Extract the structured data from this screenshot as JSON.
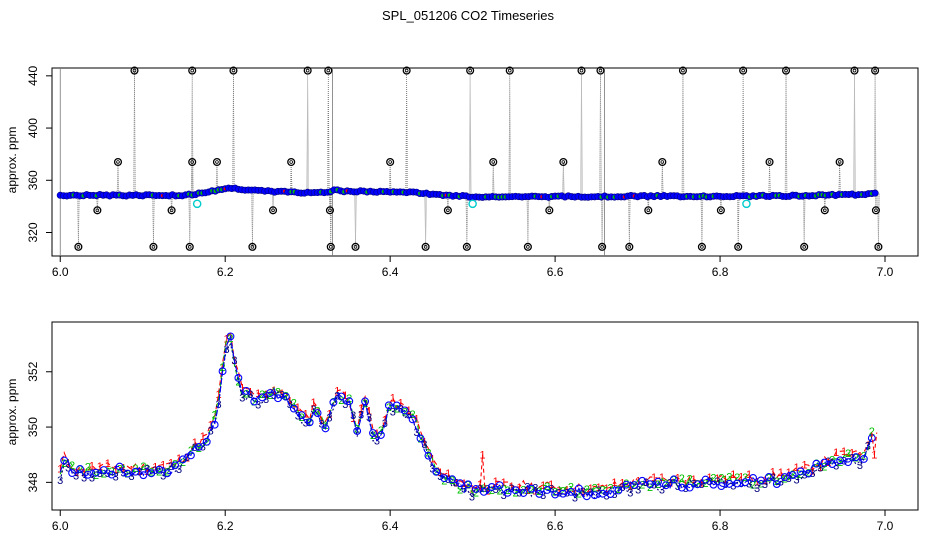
{
  "title": "SPL_051206  CO2 Timeseries",
  "colors": {
    "background": "#ffffff",
    "axis": "#000000",
    "flag_line": "#777777",
    "blue": "#0000ff",
    "green": "#00c000",
    "red": "#ff0000",
    "navy": "#000080",
    "cyan": "#00cccc",
    "black": "#000000",
    "purple": "#a020f0"
  },
  "chart_data": [
    {
      "type": "scatter",
      "name": "top",
      "title": "",
      "xlabel": "",
      "ylabel": "approx. ppm",
      "xlim": [
        5.99,
        7.04
      ],
      "ylim": [
        302,
        446
      ],
      "xticks": [
        6.0,
        6.2,
        6.4,
        6.6,
        6.8,
        7.0
      ],
      "xtick_labels": [
        "6.0",
        "6.2",
        "6.4",
        "6.6",
        "6.8",
        "7.0"
      ],
      "yticks": [
        320,
        360,
        400,
        440
      ],
      "ytick_labels": [
        "320",
        "360",
        "400",
        "440"
      ],
      "baseline_knots": [
        [
          6.0,
          348.5
        ],
        [
          6.15,
          348.5
        ],
        [
          6.17,
          350
        ],
        [
          6.2,
          353.5
        ],
        [
          6.21,
          354
        ],
        [
          6.24,
          351.8
        ],
        [
          6.3,
          350.6
        ],
        [
          6.325,
          351
        ],
        [
          6.33,
          352.5
        ],
        [
          6.35,
          351.5
        ],
        [
          6.42,
          351
        ],
        [
          6.47,
          348.5
        ],
        [
          6.5,
          347.5
        ],
        [
          6.6,
          347.5
        ],
        [
          6.7,
          347.8
        ],
        [
          6.8,
          347.8
        ],
        [
          6.9,
          348.2
        ],
        [
          6.96,
          349
        ],
        [
          6.99,
          349.8
        ]
      ],
      "baseline_step": 0.004,
      "high_spikes_x": [
        6.09,
        6.16,
        6.21,
        6.3,
        6.325,
        6.42,
        6.497,
        6.545,
        6.632,
        6.655,
        6.755,
        6.828,
        6.88,
        6.963,
        6.988
      ],
      "high_spike_value": 444,
      "mid_spikes": [
        [
          6.07,
          374
        ],
        [
          6.16,
          374
        ],
        [
          6.19,
          374
        ],
        [
          6.28,
          374
        ],
        [
          6.4,
          374
        ],
        [
          6.525,
          374
        ],
        [
          6.61,
          374
        ],
        [
          6.73,
          374
        ],
        [
          6.86,
          374
        ],
        [
          6.945,
          374
        ]
      ],
      "low_spikes": [
        [
          6.022,
          309
        ],
        [
          6.045,
          337
        ],
        [
          6.113,
          309
        ],
        [
          6.135,
          337
        ],
        [
          6.157,
          309
        ],
        [
          6.233,
          309
        ],
        [
          6.258,
          337
        ],
        [
          6.327,
          337
        ],
        [
          6.328,
          309
        ],
        [
          6.358,
          309
        ],
        [
          6.443,
          309
        ],
        [
          6.47,
          337
        ],
        [
          6.493,
          309
        ],
        [
          6.567,
          309
        ],
        [
          6.593,
          337
        ],
        [
          6.657,
          309
        ],
        [
          6.69,
          309
        ],
        [
          6.713,
          337
        ],
        [
          6.778,
          309
        ],
        [
          6.801,
          337
        ],
        [
          6.822,
          309
        ],
        [
          6.902,
          309
        ],
        [
          6.927,
          337
        ],
        [
          6.989,
          337
        ],
        [
          6.992,
          309
        ]
      ],
      "cyan_markers": [
        [
          6.166,
          342
        ],
        [
          6.5,
          342
        ],
        [
          6.832,
          342
        ]
      ],
      "flag_lines_x": [
        6.0,
        6.33,
        6.66
      ]
    },
    {
      "type": "line",
      "name": "bottom",
      "title": "",
      "xlabel": "",
      "ylabel": "approx. ppm",
      "xlim": [
        5.99,
        7.04
      ],
      "ylim": [
        347.0,
        353.8
      ],
      "xticks": [
        6.0,
        6.2,
        6.4,
        6.6,
        6.8,
        7.0
      ],
      "xtick_labels": [
        "6.0",
        "6.2",
        "6.4",
        "6.6",
        "6.8",
        "7.0"
      ],
      "yticks": [
        348,
        350,
        352
      ],
      "ytick_labels": [
        "348",
        "350",
        "352"
      ],
      "series": [
        {
          "name": "1",
          "marker": "1",
          "color": "red"
        },
        {
          "name": "2",
          "marker": "2",
          "color": "green"
        },
        {
          "name": "3",
          "marker": "3",
          "color": "navy"
        },
        {
          "name": "o",
          "marker": "o",
          "color": "blue"
        }
      ],
      "series_knots": [
        [
          6.0,
          348.3
        ],
        [
          6.005,
          348.8
        ],
        [
          6.02,
          348.3
        ],
        [
          6.05,
          348.4
        ],
        [
          6.1,
          348.4
        ],
        [
          6.14,
          348.5
        ],
        [
          6.16,
          349.1
        ],
        [
          6.18,
          349.6
        ],
        [
          6.19,
          350.5
        ],
        [
          6.2,
          352.8
        ],
        [
          6.205,
          353.5
        ],
        [
          6.21,
          352.5
        ],
        [
          6.22,
          351.2
        ],
        [
          6.24,
          351
        ],
        [
          6.26,
          351.3
        ],
        [
          6.28,
          350.8
        ],
        [
          6.3,
          350.1
        ],
        [
          6.31,
          350.9
        ],
        [
          6.32,
          349.8
        ],
        [
          6.335,
          351.2
        ],
        [
          6.35,
          350.9
        ],
        [
          6.36,
          349.8
        ],
        [
          6.37,
          351.0
        ],
        [
          6.38,
          349.6
        ],
        [
          6.39,
          349.7
        ],
        [
          6.4,
          350.8
        ],
        [
          6.42,
          350.5
        ],
        [
          6.43,
          350.2
        ],
        [
          6.44,
          349.4
        ],
        [
          6.46,
          348.2
        ],
        [
          6.48,
          347.9
        ],
        [
          6.5,
          347.7
        ],
        [
          6.55,
          347.75
        ],
        [
          6.6,
          347.7
        ],
        [
          6.65,
          347.6
        ],
        [
          6.7,
          347.9
        ],
        [
          6.75,
          347.95
        ],
        [
          6.8,
          348.0
        ],
        [
          6.85,
          348.0
        ],
        [
          6.9,
          348.3
        ],
        [
          6.94,
          348.8
        ],
        [
          6.95,
          348.9
        ],
        [
          6.97,
          348.8
        ],
        [
          6.98,
          349.3
        ],
        [
          6.985,
          349.8
        ]
      ],
      "series_offsets": [
        0.15,
        0.05,
        -0.05,
        0.0
      ],
      "series_step": 0.0048,
      "red_spikes": [
        [
          6.512,
          349.0
        ],
        [
          6.987,
          349.0
        ]
      ]
    }
  ]
}
